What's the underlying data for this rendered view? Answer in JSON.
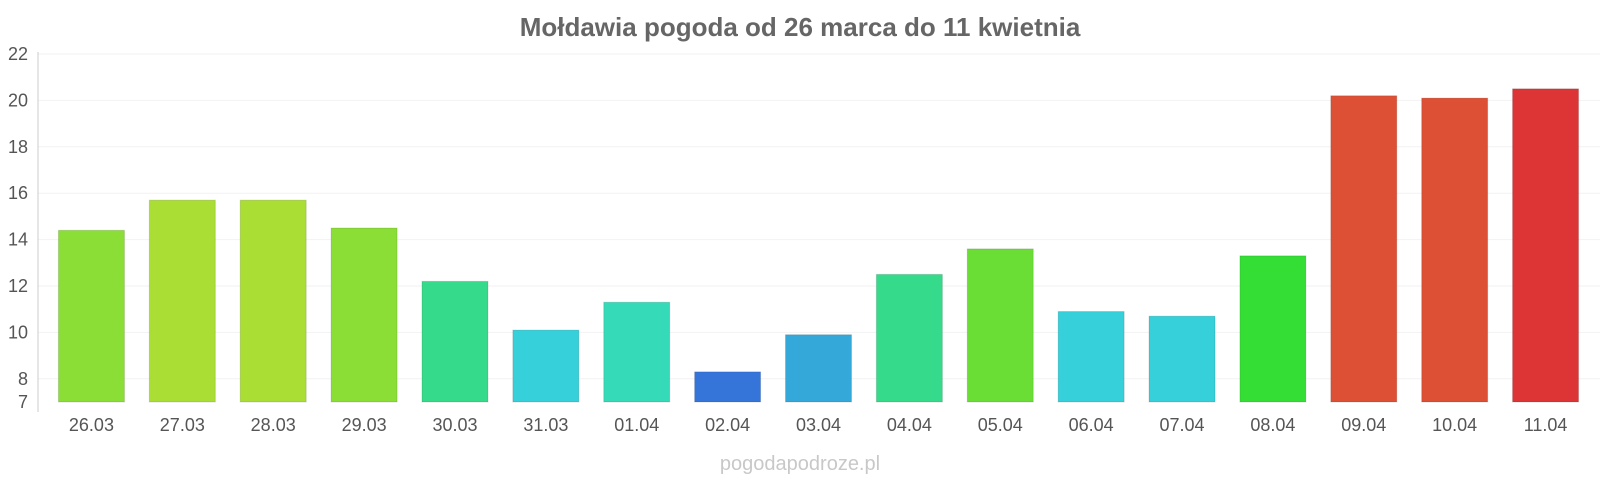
{
  "chart_data": {
    "type": "bar",
    "title": "Mołdawia pogoda od 26 marca do 11 kwietnia",
    "xlabel": "",
    "ylabel": "",
    "categories": [
      "26.03",
      "27.03",
      "28.03",
      "29.03",
      "30.03",
      "31.03",
      "01.04",
      "02.04",
      "03.04",
      "04.04",
      "05.04",
      "06.04",
      "07.04",
      "08.04",
      "09.04",
      "10.04",
      "11.04"
    ],
    "values": [
      14.4,
      15.7,
      15.7,
      14.5,
      12.2,
      10.1,
      11.3,
      8.3,
      9.9,
      12.5,
      13.6,
      10.9,
      10.7,
      13.3,
      20.2,
      20.1,
      20.5
    ],
    "colors": [
      "#8ade35",
      "#aade35",
      "#aade35",
      "#8ade35",
      "#35da8a",
      "#35d0da",
      "#35dab8",
      "#3575da",
      "#35a8da",
      "#35da8a",
      "#6ade35",
      "#35d0da",
      "#35d0da",
      "#35de35",
      "#dd5035",
      "#dd5035",
      "#dd3535"
    ],
    "yticks": [
      7,
      8,
      10,
      12,
      14,
      16,
      18,
      20,
      22
    ],
    "ylim": [
      7,
      22
    ],
    "grid": true,
    "legend": "none"
  },
  "watermark": "pogodapodroze.pl"
}
